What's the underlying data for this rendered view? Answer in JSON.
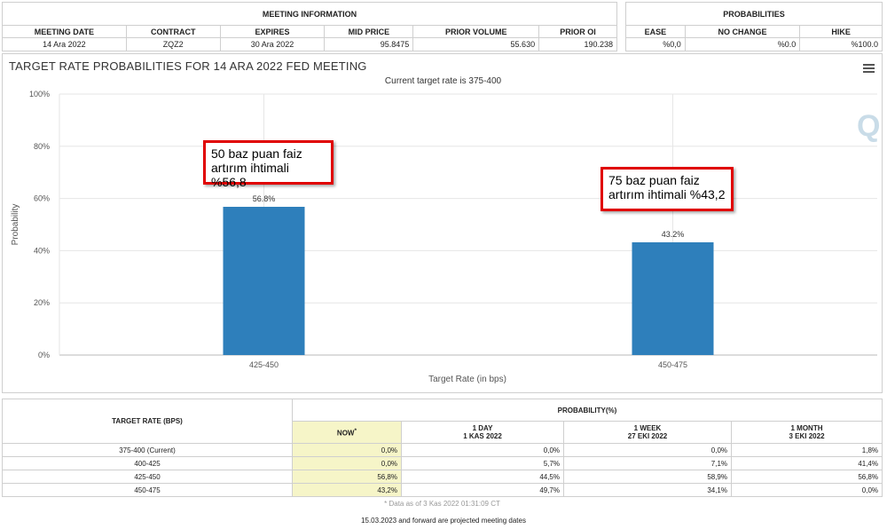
{
  "meeting_info": {
    "title": "MEETING INFORMATION",
    "headers": [
      "MEETING DATE",
      "CONTRACT",
      "EXPIRES",
      "MID PRICE",
      "PRIOR VOLUME",
      "PRIOR OI"
    ],
    "row": [
      "14 Ara 2022",
      "ZQZ2",
      "30 Ara 2022",
      "95.8475",
      "55.630",
      "190.238"
    ]
  },
  "probabilities": {
    "title": "PROBABILITIES",
    "headers": [
      "EASE",
      "NO CHANGE",
      "HIKE"
    ],
    "row": [
      "%0,0",
      "%0.0",
      "%100.0"
    ]
  },
  "chart": {
    "title": "TARGET RATE PROBABILITIES FOR 14 ARA 2022 FED MEETING",
    "subtitle": "Current target rate is 375-400",
    "watermark": "Q",
    "callouts": [
      {
        "line1": "50 baz puan faiz",
        "line2": "artırım ihtimali %56,8"
      },
      {
        "line1": "75 baz puan faiz",
        "line2": "artırım ihtimali %43,2"
      }
    ]
  },
  "chart_data": {
    "type": "bar",
    "categories": [
      "425-450",
      "450-475"
    ],
    "values": [
      56.8,
      43.2
    ],
    "value_labels": [
      "56.8%",
      "43.2%"
    ],
    "xlabel": "Target Rate (in bps)",
    "ylabel": "Probability",
    "ylim": [
      0,
      100
    ],
    "yticks": [
      "0%",
      "20%",
      "40%",
      "60%",
      "80%",
      "100%"
    ],
    "bar_color": "#2e7fbb",
    "grid": true
  },
  "prob_table": {
    "target_header": "TARGET RATE (BPS)",
    "prob_header": "PROBABILITY(%)",
    "cols": [
      {
        "l1": "NOW",
        "l2": ""
      },
      {
        "l1": "1 DAY",
        "l2": "1 KAS 2022"
      },
      {
        "l1": "1 WEEK",
        "l2": "27 EKI 2022"
      },
      {
        "l1": "1 MONTH",
        "l2": "3 EKI 2022"
      }
    ],
    "now_marker": "*",
    "rows": [
      [
        "375-400 (Current)",
        "0,0%",
        "0,0%",
        "0,0%",
        "1,8%"
      ],
      [
        "400-425",
        "0,0%",
        "5,7%",
        "7,1%",
        "41,4%"
      ],
      [
        "425-450",
        "56,8%",
        "44,5%",
        "58,9%",
        "56,8%"
      ],
      [
        "450-475",
        "43,2%",
        "49,7%",
        "34,1%",
        "0,0%"
      ]
    ]
  },
  "footer": {
    "data_note": "* Data as of 3 Kas 2022 01:31:09 CT",
    "projected_note": "15.03.2023 and forward are projected meeting dates"
  }
}
